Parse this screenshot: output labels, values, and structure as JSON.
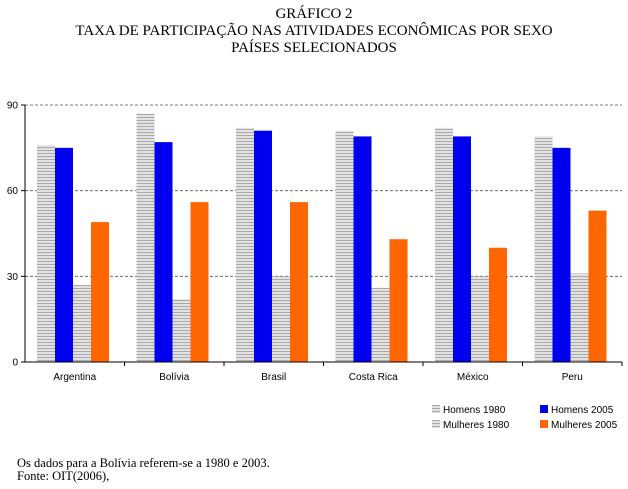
{
  "chart_data": {
    "type": "bar",
    "title_lines": [
      "GRÁFICO 2",
      "TAXA DE PARTICIPAÇÃO NAS ATIVIDADES ECONÔMICAS POR SEXO",
      "PAÍSES SELECIONADOS"
    ],
    "categories": [
      "Argentina",
      "Bolívia",
      "Brasil",
      "Costa Rica",
      "México",
      "Peru"
    ],
    "series": [
      {
        "name": "Homens 1980",
        "color": "#c8c8c8",
        "pattern": "hatched-gray",
        "values": [
          76,
          87,
          82,
          81,
          82,
          79
        ]
      },
      {
        "name": "Homens 2005",
        "color": "#0000ee",
        "values": [
          75,
          77,
          81,
          79,
          79,
          75
        ]
      },
      {
        "name": "Mulheres 1980",
        "color": "#c8c8c8",
        "pattern": "hatched-gray",
        "values": [
          27,
          22,
          30,
          26,
          30,
          31
        ]
      },
      {
        "name": "Mulheres 2005",
        "color": "#ff6600",
        "values": [
          49,
          56,
          56,
          43,
          40,
          53
        ]
      }
    ],
    "yticks": [
      0,
      30,
      60,
      90
    ],
    "ylim": [
      0,
      90
    ],
    "grid": "horizontal-dashed",
    "legend_position": "bottom-right",
    "xlabel": "",
    "ylabel": ""
  },
  "notes": [
    "Os dados para a Bolívia  referem-se a 1980 e 2003.",
    "Fonte: OIT(2006),"
  ]
}
